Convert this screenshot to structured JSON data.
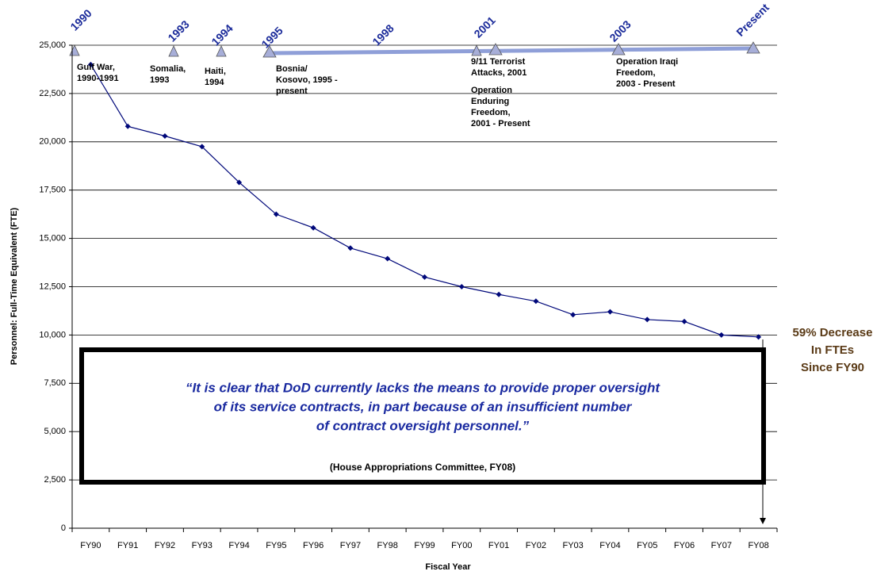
{
  "chart_data": {
    "type": "line",
    "x_label": "Fiscal Year",
    "y_label": "Personnel: Full-Time Equivalent (FTE)",
    "categories": [
      "FY90",
      "FY91",
      "FY92",
      "FY93",
      "FY94",
      "FY95",
      "FY96",
      "FY97",
      "FY98",
      "FY99",
      "FY00",
      "FY01",
      "FY02",
      "FY03",
      "FY04",
      "FY05",
      "FY06",
      "FY07",
      "FY08"
    ],
    "series": [
      {
        "color": "#00087a",
        "values": [
          24000,
          20800,
          20300,
          19750,
          17900,
          16250,
          15550,
          14500,
          13950,
          13000,
          12500,
          12100,
          11750,
          11050,
          11200,
          10800,
          10700,
          10000,
          9900
        ]
      }
    ],
    "ylim": [
      0,
      25000
    ],
    "yticks": [
      0,
      {
        "value": 2500,
        "label": "2,500"
      },
      {
        "value": 5000,
        "label": "5,000"
      },
      {
        "value": 7500,
        "label": "7,500"
      },
      {
        "value": 10000,
        "label": "10,000"
      },
      {
        "value": 12500,
        "label": "12,500"
      },
      {
        "value": 15000,
        "label": "15,000"
      },
      {
        "value": 17500,
        "label": "17,500"
      },
      {
        "value": 20000,
        "label": "20,000"
      },
      {
        "value": 22500,
        "label": "22,500"
      },
      {
        "value": 25000,
        "label": "25,000"
      }
    ],
    "grid": true,
    "timeline_years": [
      "1990",
      "1993",
      "1994",
      "1995",
      "1998",
      "2001",
      "2003",
      "Present"
    ],
    "events": [
      {
        "lines": [
          "Gulf War,",
          "1990-1991"
        ]
      },
      {
        "lines": [
          "Somalia,",
          "1993"
        ]
      },
      {
        "lines": [
          "Haiti,",
          "1994"
        ]
      },
      {
        "lines": [
          "Bosnia/",
          "Kosovo, 1995 -",
          "present"
        ]
      },
      {
        "lines": [
          "9/11 Terrorist",
          "Attacks, 2001"
        ]
      },
      {
        "lines": [
          "Operation",
          "Enduring",
          "Freedom,",
          "2001 - Present"
        ]
      },
      {
        "lines": [
          "Operation Iraqi",
          "Freedom,",
          "2003 - Present"
        ]
      }
    ],
    "quote": {
      "lines": [
        "“It is clear that DoD currently lacks the means to provide proper oversight",
        "of its service contracts, in part because of an insufficient number",
        "of contract oversight personnel.”"
      ],
      "source": "(House Appropriations Committee, FY08)"
    },
    "note": {
      "lines": [
        "59% Decrease",
        "In FTEs",
        "Since FY90"
      ]
    }
  }
}
